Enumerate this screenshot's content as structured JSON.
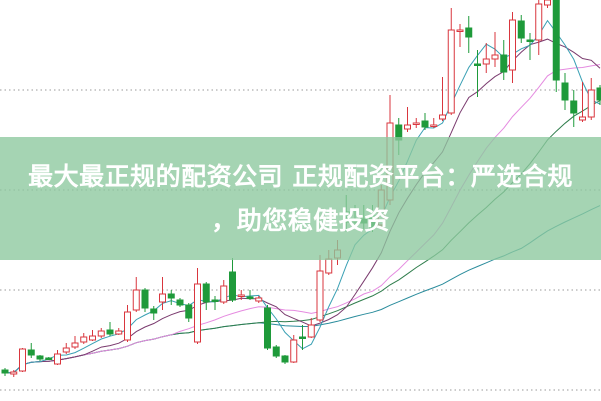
{
  "banner": {
    "title_line1": "最大最正规的配资公司 正规配资平台：严选合规",
    "title_line2": "，助您稳健投资"
  },
  "colors": {
    "up": "#d9363e",
    "down": "#1e9a3a",
    "banner": "#8cc89e",
    "grid": "#9a9a9a",
    "ma5": "#3aa0b4",
    "ma10": "#7a3a6e",
    "ma20": "#e58be0",
    "ma30": "#2f7d4c",
    "ma60": "#2a8c9c"
  },
  "chart_data": {
    "type": "candlestick",
    "grid": "horizontal-dotted",
    "gridlines": [
      1,
      11,
      21,
      31
    ],
    "ylim": [
      0,
      40
    ],
    "moving_averages": [
      5,
      10,
      20,
      30,
      60
    ],
    "candles": [
      [
        3.0,
        2.7,
        3.2,
        2.4
      ],
      [
        2.6,
        2.8,
        3.0,
        2.3
      ],
      [
        2.9,
        5.1,
        5.2,
        2.8
      ],
      [
        5.0,
        4.5,
        5.7,
        4.2
      ],
      [
        4.4,
        4.1,
        4.5,
        3.9
      ],
      [
        4.2,
        4.1,
        4.3,
        4.0
      ],
      [
        3.6,
        4.6,
        5.0,
        3.5
      ],
      [
        4.8,
        5.2,
        5.7,
        4.6
      ],
      [
        5.3,
        5.7,
        6.4,
        5.1
      ],
      [
        5.8,
        6.3,
        6.7,
        5.6
      ],
      [
        6.0,
        6.4,
        7.0,
        5.9
      ],
      [
        6.4,
        6.9,
        7.2,
        6.2
      ],
      [
        7.0,
        6.6,
        7.8,
        6.4
      ],
      [
        6.6,
        6.9,
        7.2,
        6.5
      ],
      [
        6.0,
        8.8,
        9.5,
        5.8
      ],
      [
        9.0,
        11.0,
        12.3,
        8.8
      ],
      [
        11.0,
        9.2,
        11.2,
        8.8
      ],
      [
        9.1,
        8.7,
        9.4,
        8.0
      ],
      [
        9.8,
        10.6,
        12.3,
        9.0
      ],
      [
        10.6,
        10.2,
        11.0,
        9.5
      ],
      [
        10.0,
        9.5,
        10.2,
        9.3
      ],
      [
        9.5,
        8.2,
        9.7,
        7.8
      ],
      [
        5.8,
        11.6,
        13.2,
        5.6
      ],
      [
        11.6,
        9.8,
        11.8,
        9.0
      ],
      [
        10.0,
        9.9,
        10.4,
        9.0
      ],
      [
        9.8,
        11.4,
        12.0,
        9.6
      ],
      [
        12.8,
        10.0,
        14.2,
        9.8
      ],
      [
        10.4,
        10.5,
        11.0,
        10.0
      ],
      [
        10.3,
        10.2,
        11.0,
        10.0
      ],
      [
        9.9,
        10.2,
        10.4,
        9.7
      ],
      [
        9.2,
        5.2,
        9.5,
        5.0
      ],
      [
        5.3,
        4.4,
        5.5,
        4.2
      ],
      [
        4.4,
        3.8,
        4.5,
        3.6
      ],
      [
        3.8,
        6.0,
        6.5,
        3.7
      ],
      [
        6.3,
        6.2,
        7.5,
        5.0
      ],
      [
        6.3,
        7.5,
        8.2,
        6.2
      ],
      [
        8.0,
        12.9,
        14.5,
        7.8
      ],
      [
        12.7,
        14.1,
        15.0,
        12.5
      ],
      [
        14.2,
        15.0,
        16.0,
        13.5
      ],
      [
        18.8,
        17.8,
        20.5,
        16.8
      ],
      [
        18.0,
        17.8,
        19.5,
        17.2
      ],
      [
        18.1,
        17.7,
        19.5,
        17.0
      ],
      [
        18.4,
        17.2,
        19.5,
        16.8
      ],
      [
        17.5,
        21.0,
        21.5,
        17.2
      ],
      [
        20.0,
        27.7,
        30.5,
        19.5
      ],
      [
        27.5,
        26.0,
        28.2,
        24.5
      ],
      [
        27.1,
        27.5,
        29.3,
        26.8
      ],
      [
        27.6,
        27.7,
        28.2,
        27.2
      ],
      [
        27.9,
        27.3,
        28.7,
        27.0
      ],
      [
        27.4,
        27.5,
        28.2,
        27.2
      ],
      [
        28.1,
        28.5,
        32.3,
        27.9
      ],
      [
        28.7,
        37.0,
        39.2,
        28.5
      ],
      [
        36.9,
        37.0,
        37.6,
        35.3
      ],
      [
        37.2,
        36.3,
        38.4,
        34.7
      ],
      [
        33.6,
        33.5,
        35.0,
        30.3
      ],
      [
        33.6,
        34.1,
        35.7,
        32.7
      ],
      [
        34.1,
        34.5,
        36.8,
        33.3
      ],
      [
        34.5,
        32.8,
        36.0,
        32.0
      ],
      [
        33.0,
        38.0,
        38.8,
        31.7
      ],
      [
        37.9,
        36.2,
        38.5,
        35.7
      ],
      [
        36.0,
        35.9,
        36.7,
        34.0
      ],
      [
        36.0,
        39.6,
        40.0,
        34.5
      ],
      [
        39.5,
        40.0,
        40.0,
        39.2
      ],
      [
        40.0,
        32.0,
        40.0,
        30.8
      ],
      [
        31.7,
        30.0,
        32.7,
        29.0
      ],
      [
        29.9,
        28.7,
        31.0,
        27.3
      ],
      [
        28.0,
        28.3,
        31.8,
        27.8
      ],
      [
        28.3,
        31.0,
        32.2,
        28.0
      ],
      [
        31.2,
        30.0,
        31.5,
        29.5
      ]
    ]
  }
}
